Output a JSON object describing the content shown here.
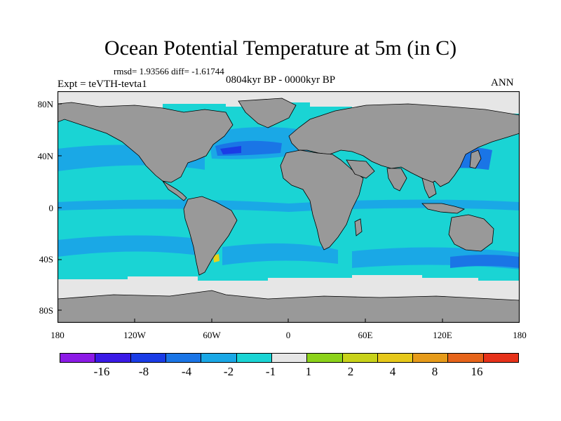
{
  "plot": {
    "title": "Ocean Potential Temperature at 5m (in C)",
    "stats": "rmsd= 1.93566 diff= -1.61744",
    "period": "0804kyr BP - 0000kyr BP",
    "experiment": "Expt = teVTH-tevta1",
    "season": "ANN"
  },
  "axes": {
    "y_ticks": [
      "80N",
      "40N",
      "0",
      "40S",
      "80S"
    ],
    "x_ticks": [
      "180",
      "120W",
      "60W",
      "0",
      "60E",
      "120E",
      "180"
    ]
  },
  "colors": {
    "land": "#999999",
    "ocean_base": "#1ad4d4",
    "cool_mid": "#1aa8e6",
    "cool_strong": "#1a75e6",
    "cool_deep": "#1a3ce6",
    "neutral": "#e6e6e6",
    "warm_spot": "#e6d21a"
  },
  "colorbar": {
    "colors": [
      "#8c1ae6",
      "#3a1ae6",
      "#1a3ce6",
      "#1a75e6",
      "#1aa8e6",
      "#1ad4d4",
      "#e6e6e6",
      "#8cd21a",
      "#c8d21a",
      "#e6c81a",
      "#e69b1a",
      "#e6641a",
      "#e6321a"
    ],
    "labels": [
      "-16",
      "-8",
      "-4",
      "-2",
      "-1",
      "1",
      "2",
      "4",
      "8",
      "16"
    ]
  }
}
